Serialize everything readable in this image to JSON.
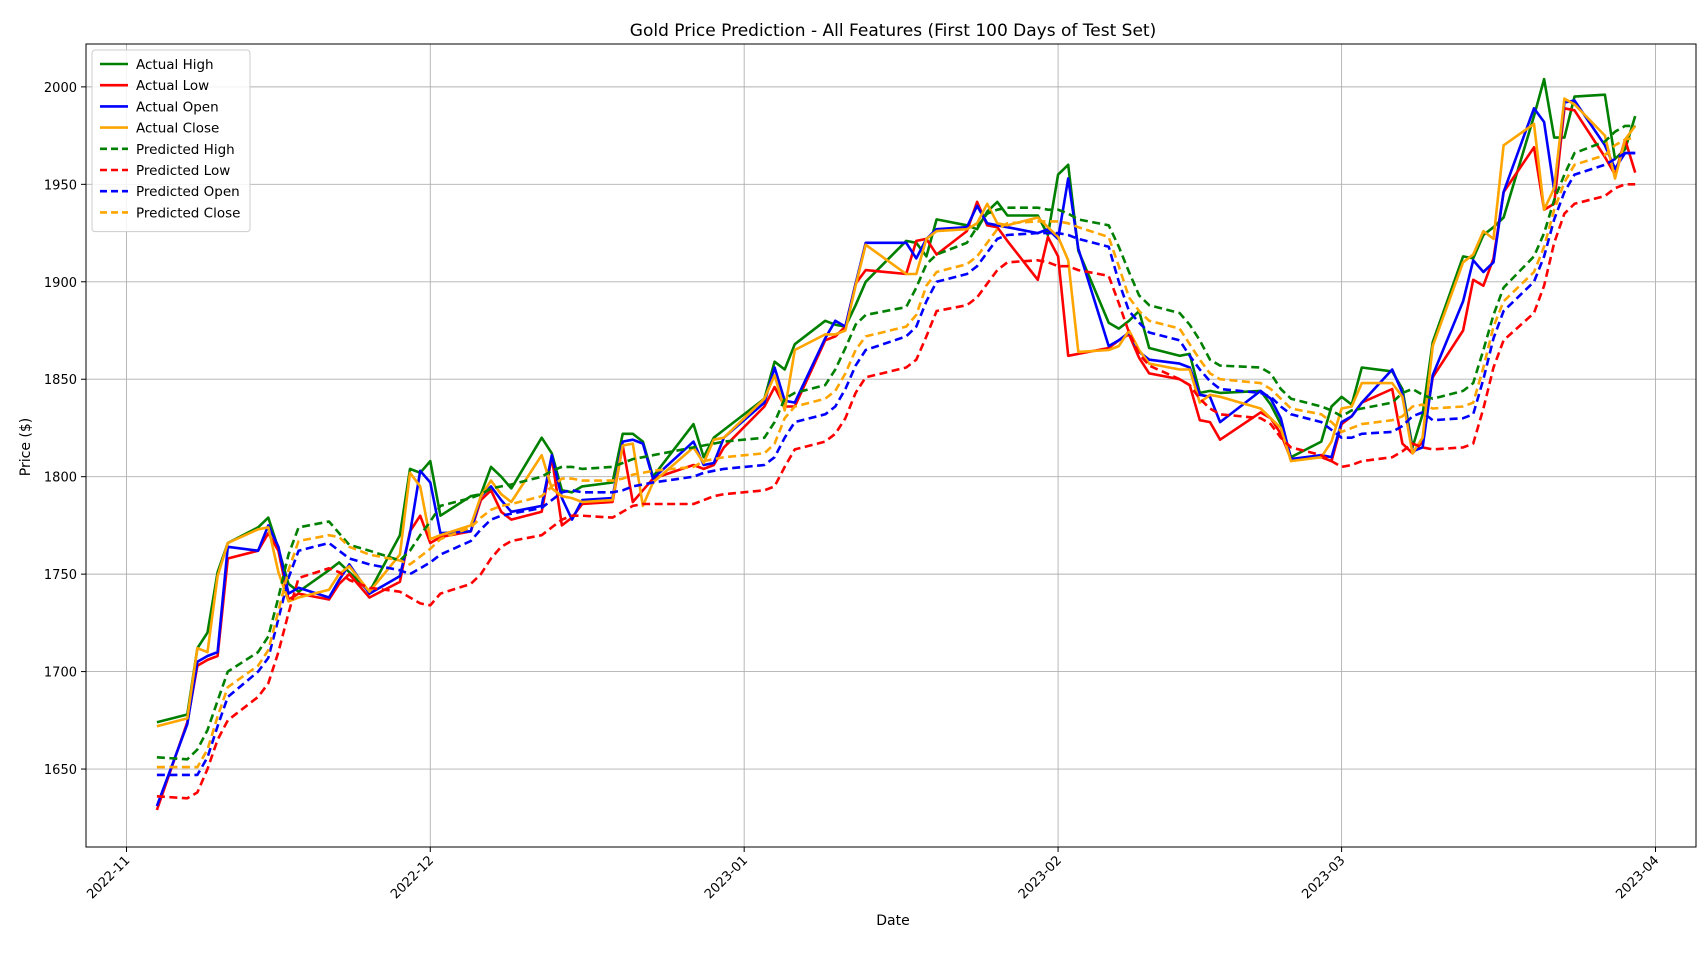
{
  "chart_data": {
    "type": "line",
    "title": "Gold Price Prediction - All Features (First 100 Days of Test Set)",
    "xlabel": "Date",
    "ylabel": "Price ($)",
    "xlim": [
      "2022-10-28",
      "2023-04-05"
    ],
    "ylim": [
      1610,
      2022
    ],
    "grid": true,
    "legend_position": "top-left",
    "x_ticks": [
      "2022-11-01",
      "2022-12-01",
      "2023-01-01",
      "2023-02-01",
      "2023-03-01",
      "2023-04-01"
    ],
    "x_tick_labels": [
      "2022-11",
      "2022-12",
      "2023-01",
      "2023-02",
      "2023-03",
      "2023-04"
    ],
    "y_ticks": [
      1650,
      1700,
      1750,
      1800,
      1850,
      1900,
      1950,
      2000
    ],
    "y_tick_labels": [
      "1650",
      "1700",
      "1750",
      "1800",
      "1850",
      "1900",
      "1950",
      "2000"
    ],
    "dates": [
      "2022-11-04",
      "2022-11-07",
      "2022-11-08",
      "2022-11-09",
      "2022-11-10",
      "2022-11-11",
      "2022-11-14",
      "2022-11-15",
      "2022-11-16",
      "2022-11-17",
      "2022-11-18",
      "2022-11-21",
      "2022-11-22",
      "2022-11-23",
      "2022-11-25",
      "2022-11-28",
      "2022-11-29",
      "2022-11-30",
      "2022-12-01",
      "2022-12-02",
      "2022-12-05",
      "2022-12-06",
      "2022-12-07",
      "2022-12-08",
      "2022-12-09",
      "2022-12-12",
      "2022-12-13",
      "2022-12-14",
      "2022-12-15",
      "2022-12-16",
      "2022-12-19",
      "2022-12-20",
      "2022-12-21",
      "2022-12-22",
      "2022-12-23",
      "2022-12-27",
      "2022-12-28",
      "2022-12-29",
      "2022-12-30",
      "2023-01-03",
      "2023-01-04",
      "2023-01-05",
      "2023-01-06",
      "2023-01-09",
      "2023-01-10",
      "2023-01-11",
      "2023-01-12",
      "2023-01-13",
      "2023-01-17",
      "2023-01-18",
      "2023-01-19",
      "2023-01-20",
      "2023-01-23",
      "2023-01-24",
      "2023-01-25",
      "2023-01-26",
      "2023-01-27",
      "2023-01-30",
      "2023-01-31",
      "2023-02-01",
      "2023-02-02",
      "2023-02-03",
      "2023-02-06",
      "2023-02-07",
      "2023-02-08",
      "2023-02-09",
      "2023-02-10",
      "2023-02-13",
      "2023-02-14",
      "2023-02-15",
      "2023-02-16",
      "2023-02-17",
      "2023-02-21",
      "2023-02-22",
      "2023-02-23",
      "2023-02-24",
      "2023-02-27",
      "2023-02-28",
      "2023-03-01",
      "2023-03-02",
      "2023-03-03",
      "2023-03-06",
      "2023-03-07",
      "2023-03-08",
      "2023-03-09",
      "2023-03-10",
      "2023-03-13",
      "2023-03-14",
      "2023-03-15",
      "2023-03-16",
      "2023-03-17",
      "2023-03-20",
      "2023-03-21",
      "2023-03-22",
      "2023-03-23",
      "2023-03-24",
      "2023-03-27",
      "2023-03-28",
      "2023-03-29",
      "2023-03-30"
    ],
    "series": [
      {
        "name": "Actual High",
        "color": "#008000",
        "dash": "solid",
        "values": [
          1674,
          1678,
          1712,
          1720,
          1751,
          1766,
          1774,
          1779,
          1763,
          1745,
          1741,
          1752,
          1756,
          1751,
          1741,
          1770,
          1804,
          1802,
          1808,
          1780,
          1790,
          1791,
          1805,
          1800,
          1794,
          1820,
          1812,
          1793,
          1792,
          1795,
          1797,
          1822,
          1822,
          1818,
          1800,
          1827,
          1810,
          1820,
          1824,
          1840,
          1859,
          1855,
          1868,
          1880,
          1878,
          1877,
          1888,
          1900,
          1921,
          1920,
          1913,
          1932,
          1929,
          1927,
          1936,
          1941,
          1934,
          1934,
          1924,
          1955,
          1960,
          1916,
          1879,
          1876,
          1880,
          1885,
          1866,
          1862,
          1863,
          1843,
          1844,
          1843,
          1844,
          1837,
          1827,
          1810,
          1818,
          1836,
          1841,
          1837,
          1856,
          1854,
          1845,
          1815,
          1832,
          1869,
          1913,
          1912,
          1924,
          1928,
          1933,
          1985,
          2004,
          1974,
          1974,
          1995,
          1996,
          1963,
          1968,
          1985
        ]
      },
      {
        "name": "Actual Low",
        "color": "#ff0000",
        "dash": "solid",
        "values": [
          1629,
          1674,
          1703,
          1706,
          1708,
          1758,
          1762,
          1771,
          1762,
          1737,
          1740,
          1737,
          1745,
          1750,
          1738,
          1746,
          1772,
          1780,
          1766,
          1769,
          1772,
          1788,
          1793,
          1782,
          1778,
          1782,
          1810,
          1775,
          1779,
          1786,
          1787,
          1816,
          1787,
          1793,
          1799,
          1806,
          1804,
          1806,
          1815,
          1836,
          1846,
          1836,
          1836,
          1870,
          1872,
          1877,
          1899,
          1906,
          1904,
          1921,
          1922,
          1914,
          1926,
          1941,
          1929,
          1928,
          1921,
          1901,
          1923,
          1913,
          1862,
          1863,
          1866,
          1870,
          1873,
          1861,
          1853,
          1850,
          1847,
          1829,
          1828,
          1819,
          1833,
          1830,
          1822,
          1809,
          1810,
          1808,
          1827,
          1831,
          1838,
          1845,
          1817,
          1812,
          1818,
          1851,
          1875,
          1901,
          1898,
          1912,
          1946,
          1969,
          1937,
          1940,
          1989,
          1988,
          1964,
          1955,
          1973,
          1956
        ]
      },
      {
        "name": "Actual Open",
        "color": "#0000ff",
        "dash": "solid",
        "values": [
          1631,
          1673,
          1705,
          1708,
          1710,
          1764,
          1762,
          1775,
          1764,
          1740,
          1743,
          1738,
          1747,
          1755,
          1740,
          1749,
          1771,
          1803,
          1797,
          1771,
          1772,
          1790,
          1795,
          1788,
          1782,
          1785,
          1811,
          1789,
          1778,
          1788,
          1789,
          1818,
          1819,
          1817,
          1799,
          1818,
          1806,
          1807,
          1820,
          1838,
          1856,
          1839,
          1838,
          1871,
          1880,
          1877,
          1899,
          1920,
          1920,
          1912,
          1922,
          1927,
          1928,
          1939,
          1930,
          1929,
          1928,
          1925,
          1927,
          1922,
          1953,
          1917,
          1867,
          1870,
          1874,
          1864,
          1860,
          1858,
          1856,
          1842,
          1841,
          1828,
          1844,
          1840,
          1830,
          1809,
          1811,
          1810,
          1828,
          1831,
          1838,
          1855,
          1843,
          1813,
          1815,
          1852,
          1890,
          1911,
          1905,
          1910,
          1946,
          1989,
          1982,
          1947,
          1992,
          1993,
          1970,
          1958,
          1966,
          1966
        ]
      },
      {
        "name": "Actual Close",
        "color": "#ffa500",
        "dash": "solid",
        "values": [
          1672,
          1676,
          1712,
          1710,
          1749,
          1766,
          1773,
          1774,
          1751,
          1736,
          1738,
          1742,
          1750,
          1754,
          1741,
          1760,
          1802,
          1795,
          1768,
          1770,
          1775,
          1790,
          1798,
          1791,
          1787,
          1811,
          1794,
          1790,
          1789,
          1787,
          1788,
          1816,
          1817,
          1785,
          1797,
          1815,
          1807,
          1819,
          1820,
          1840,
          1852,
          1834,
          1865,
          1873,
          1873,
          1875,
          1898,
          1919,
          1904,
          1904,
          1922,
          1926,
          1927,
          1930,
          1940,
          1930,
          1929,
          1933,
          1928,
          1923,
          1911,
          1864,
          1865,
          1867,
          1875,
          1865,
          1858,
          1855,
          1855,
          1838,
          1842,
          1841,
          1835,
          1830,
          1825,
          1808,
          1810,
          1818,
          1835,
          1836,
          1848,
          1848,
          1841,
          1812,
          1820,
          1867,
          1910,
          1914,
          1926,
          1922,
          1970,
          1981,
          1937,
          1948,
          1994,
          1991,
          1975,
          1953,
          1973,
          1980
        ]
      },
      {
        "name": "Predicted High",
        "color": "#008000",
        "dash": "dashed",
        "values": [
          1656,
          1655,
          1660,
          1670,
          1685,
          1700,
          1710,
          1718,
          1738,
          1760,
          1774,
          1777,
          1771,
          1765,
          1762,
          1757,
          1762,
          1770,
          1777,
          1785,
          1789,
          1791,
          1794,
          1795,
          1796,
          1800,
          1803,
          1805,
          1805,
          1804,
          1805,
          1807,
          1809,
          1810,
          1811,
          1815,
          1816,
          1817,
          1818,
          1820,
          1828,
          1840,
          1843,
          1847,
          1855,
          1866,
          1878,
          1883,
          1887,
          1897,
          1909,
          1914,
          1920,
          1928,
          1935,
          1937,
          1938,
          1938,
          1937,
          1937,
          1935,
          1932,
          1929,
          1918,
          1905,
          1893,
          1888,
          1884,
          1878,
          1870,
          1860,
          1857,
          1856,
          1853,
          1845,
          1840,
          1836,
          1834,
          1831,
          1834,
          1835,
          1838,
          1843,
          1845,
          1842,
          1840,
          1844,
          1848,
          1865,
          1883,
          1897,
          1913,
          1925,
          1942,
          1955,
          1966,
          1972,
          1977,
          1980,
          1980
        ]
      },
      {
        "name": "Predicted Low",
        "color": "#ff0000",
        "dash": "dashed",
        "values": [
          1636,
          1635,
          1638,
          1650,
          1665,
          1675,
          1687,
          1694,
          1710,
          1730,
          1748,
          1753,
          1751,
          1747,
          1743,
          1741,
          1738,
          1735,
          1734,
          1740,
          1745,
          1750,
          1758,
          1764,
          1767,
          1770,
          1774,
          1778,
          1780,
          1780,
          1779,
          1782,
          1785,
          1786,
          1786,
          1786,
          1788,
          1790,
          1791,
          1793,
          1795,
          1805,
          1814,
          1818,
          1822,
          1830,
          1843,
          1851,
          1856,
          1860,
          1872,
          1885,
          1888,
          1892,
          1899,
          1906,
          1910,
          1911,
          1910,
          1908,
          1908,
          1906,
          1903,
          1889,
          1874,
          1863,
          1857,
          1850,
          1847,
          1840,
          1835,
          1832,
          1830,
          1827,
          1820,
          1815,
          1811,
          1808,
          1805,
          1806,
          1808,
          1810,
          1813,
          1817,
          1815,
          1814,
          1815,
          1817,
          1835,
          1856,
          1870,
          1884,
          1898,
          1920,
          1935,
          1940,
          1944,
          1948,
          1950,
          1950
        ]
      },
      {
        "name": "Predicted Open",
        "color": "#0000ff",
        "dash": "dashed",
        "values": [
          1647,
          1647,
          1647,
          1656,
          1672,
          1687,
          1700,
          1707,
          1727,
          1748,
          1762,
          1766,
          1762,
          1758,
          1755,
          1752,
          1750,
          1753,
          1756,
          1760,
          1767,
          1773,
          1778,
          1780,
          1781,
          1784,
          1788,
          1792,
          1793,
          1792,
          1792,
          1793,
          1795,
          1796,
          1797,
          1800,
          1802,
          1803,
          1804,
          1806,
          1810,
          1820,
          1828,
          1832,
          1836,
          1845,
          1857,
          1865,
          1872,
          1877,
          1890,
          1900,
          1904,
          1908,
          1915,
          1922,
          1924,
          1925,
          1925,
          1925,
          1924,
          1922,
          1918,
          1900,
          1885,
          1879,
          1874,
          1870,
          1862,
          1855,
          1849,
          1845,
          1843,
          1841,
          1836,
          1832,
          1828,
          1824,
          1820,
          1820,
          1822,
          1823,
          1826,
          1831,
          1833,
          1829,
          1830,
          1832,
          1850,
          1871,
          1885,
          1900,
          1913,
          1932,
          1946,
          1955,
          1960,
          1963,
          1966,
          1966
        ]
      },
      {
        "name": "Predicted Close",
        "color": "#ffa500",
        "dash": "dashed",
        "values": [
          1651,
          1651,
          1651,
          1660,
          1677,
          1692,
          1703,
          1711,
          1731,
          1752,
          1767,
          1770,
          1769,
          1764,
          1760,
          1757,
          1755,
          1759,
          1763,
          1768,
          1774,
          1779,
          1783,
          1785,
          1786,
          1790,
          1795,
          1799,
          1799,
          1798,
          1798,
          1799,
          1801,
          1802,
          1803,
          1805,
          1808,
          1809,
          1810,
          1812,
          1817,
          1830,
          1836,
          1840,
          1844,
          1853,
          1865,
          1872,
          1877,
          1883,
          1898,
          1905,
          1909,
          1913,
          1920,
          1927,
          1930,
          1931,
          1931,
          1931,
          1930,
          1928,
          1923,
          1908,
          1892,
          1885,
          1880,
          1876,
          1868,
          1860,
          1853,
          1850,
          1848,
          1845,
          1840,
          1835,
          1832,
          1828,
          1823,
          1825,
          1827,
          1829,
          1831,
          1836,
          1837,
          1835,
          1836,
          1838,
          1856,
          1877,
          1890,
          1905,
          1918,
          1937,
          1951,
          1960,
          1965,
          1970,
          1973,
          1974
        ]
      }
    ]
  }
}
